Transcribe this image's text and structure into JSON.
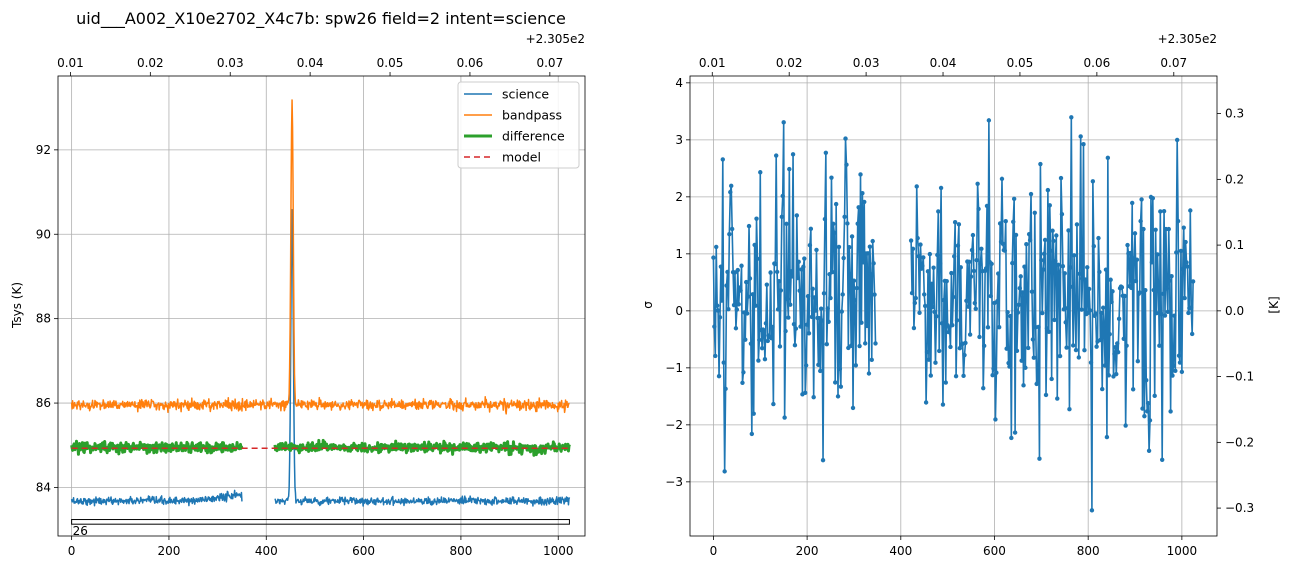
{
  "chart_data": [
    {
      "type": "line",
      "title": "uid___A002_X10e2702_X4c7b: spw26 field=2 intent=science",
      "xlabel": "",
      "ylabel": "Tsys (K)",
      "xlim": [
        -28,
        1055
      ],
      "ylim": [
        82.85,
        93.75
      ],
      "xticks": [
        0,
        200,
        400,
        600,
        800,
        1000
      ],
      "xtick_labels": [
        "0",
        "200",
        "400",
        "600",
        "800",
        "1000"
      ],
      "yticks": [
        84,
        86,
        88,
        90,
        92
      ],
      "ytick_labels": [
        "84",
        "86",
        "88",
        "90",
        "92"
      ],
      "top_axis": {
        "offset_label": "+2.305e2",
        "ticks": [
          0.01,
          0.02,
          0.03,
          0.04,
          0.05,
          0.06,
          0.07
        ],
        "tick_labels": [
          "0.01",
          "0.02",
          "0.03",
          "0.04",
          "0.05",
          "0.06",
          "0.07"
        ],
        "freq_at_channel_0": 0.01015,
        "freq_per_channel": 6.09e-05
      },
      "grid": true,
      "legend_position": "upper right",
      "series": [
        {
          "name": "science",
          "color": "#1f77b4",
          "linewidth": 1.5,
          "dash": "",
          "base": 83.68,
          "noise": 0.045,
          "gaps": [
            [
              350,
              418
            ]
          ],
          "peak": {
            "center": 453,
            "height": 6.9,
            "width": 2.5
          }
        },
        {
          "name": "bandpass",
          "color": "#ff7f0e",
          "linewidth": 1.5,
          "dash": "",
          "base": 85.96,
          "noise": 0.06,
          "gaps": [],
          "peak": {
            "center": 453,
            "height": 7.2,
            "width": 2.4
          }
        },
        {
          "name": "difference",
          "color": "#2ca02c",
          "linewidth": 3,
          "dash": "",
          "base": 84.95,
          "noise": 0.06,
          "gaps": [
            [
              350,
              418
            ]
          ],
          "peak": {
            "center": 453,
            "height": 0,
            "width": 1
          }
        },
        {
          "name": "model",
          "color": "#d62728",
          "linewidth": 1.5,
          "dash": "6,4",
          "base": 84.93,
          "noise": 0,
          "gaps": [],
          "peak": {
            "center": 453,
            "height": 0,
            "width": 1
          }
        }
      ],
      "channel_range": [
        0,
        1023
      ],
      "range_bar": {
        "label": "26",
        "from": 0,
        "to": 1023,
        "y_top": 83.24,
        "y_bottom": 83.13
      }
    },
    {
      "type": "scatter",
      "title": "",
      "xlabel": "",
      "ylabel": "σ",
      "ylabel_right": "[K]",
      "xlim": [
        -50,
        1075
      ],
      "ylim": [
        -3.95,
        4.12
      ],
      "xticks": [
        0,
        200,
        400,
        600,
        800,
        1000
      ],
      "xtick_labels": [
        "0",
        "200",
        "400",
        "600",
        "800",
        "1000"
      ],
      "yticks": [
        -3,
        -2,
        -1,
        0,
        1,
        2,
        3,
        4
      ],
      "ytick_labels": [
        "−3",
        "−2",
        "−1",
        "0",
        "1",
        "2",
        "3",
        "4"
      ],
      "right_yticks": [
        -0.3,
        -0.2,
        -0.1,
        0.0,
        0.1,
        0.2,
        0.3
      ],
      "right_ytick_labels": [
        "−0.3",
        "−0.2",
        "−0.1",
        "0.0",
        "0.1",
        "0.2",
        "0.3"
      ],
      "right_scale_per_sigma": 0.0867,
      "top_axis": {
        "offset_label": "+2.305e2",
        "ticks": [
          0.01,
          0.02,
          0.03,
          0.04,
          0.05,
          0.06,
          0.07
        ],
        "tick_labels": [
          "0.01",
          "0.02",
          "0.03",
          "0.04",
          "0.05",
          "0.06",
          "0.07"
        ],
        "freq_at_channel_0": 0.01015,
        "freq_per_channel": 6.09e-05
      },
      "grid": true,
      "series": [
        {
          "name": "sigma",
          "color": "#1f77b4",
          "marker": "o",
          "step": 2,
          "channels": [
            [
              0,
              346
            ],
            [
              422,
              1024
            ]
          ],
          "mean": 0.35,
          "sigma": 1.2,
          "min": -3.5,
          "max": 3.6
        }
      ]
    }
  ]
}
